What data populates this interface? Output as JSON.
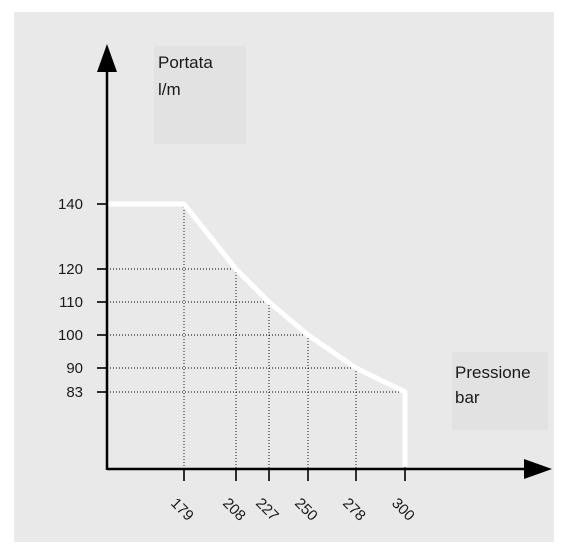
{
  "colors": {
    "panel": "#e9e9e9",
    "label_box": "#e2e2e2",
    "axis": "#000000",
    "curve": "#ffffff",
    "grid": "#000000",
    "text": "#1a1a1a"
  },
  "chart_data": {
    "type": "line",
    "title": "",
    "ylabel": "Portata",
    "yunit": "l/m",
    "xlabel": "Pressione",
    "xunit": "bar",
    "grid": "dotted reference lines",
    "x_ticks": [
      179,
      208,
      227,
      250,
      278,
      300
    ],
    "y_ticks": [
      83,
      90,
      100,
      110,
      120,
      140
    ],
    "x_tick_labels": [
      "179",
      "208",
      "227",
      "250",
      "278",
      "300"
    ],
    "y_tick_labels": [
      "83",
      "90",
      "100",
      "110",
      "120",
      "140"
    ],
    "series": [
      {
        "x": [
          179,
          208,
          227,
          250,
          278,
          300
        ],
        "y": [
          140,
          120,
          110,
          100,
          90,
          83
        ]
      }
    ]
  }
}
